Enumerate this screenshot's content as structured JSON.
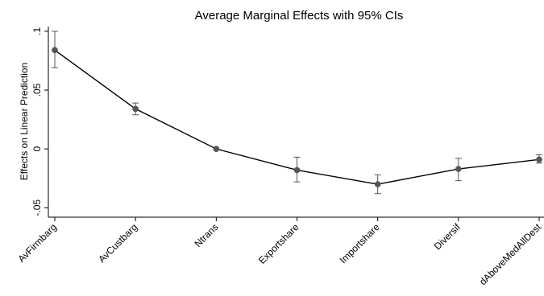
{
  "chart_data": {
    "type": "line",
    "title": "Average Marginal Effects with 95% CIs",
    "xlabel": "",
    "ylabel": "Effects on Linear Prediction",
    "categories": [
      "AvFirmbarg",
      "AvCustbarg",
      "Ntrans",
      "Exportshare",
      "Importshare",
      "Diversif",
      "dAboveMedAllDest"
    ],
    "values": [
      0.084,
      0.034,
      0.0,
      -0.018,
      -0.03,
      -0.017,
      -0.009
    ],
    "ci_lower": [
      0.069,
      0.029,
      0.0,
      -0.028,
      -0.038,
      -0.027,
      -0.012
    ],
    "ci_upper": [
      0.1,
      0.039,
      0.0,
      -0.007,
      -0.022,
      -0.008,
      -0.005
    ],
    "yticks": [
      -0.05,
      0,
      0.05,
      0.1
    ],
    "ytick_labels": [
      "-.05",
      "0",
      ".05",
      ".1"
    ],
    "ylim": [
      -0.058,
      0.104
    ],
    "grid": false,
    "legend": "none",
    "colors": {
      "line": "#000000",
      "marker": "#555555",
      "ci": "#555555"
    }
  }
}
